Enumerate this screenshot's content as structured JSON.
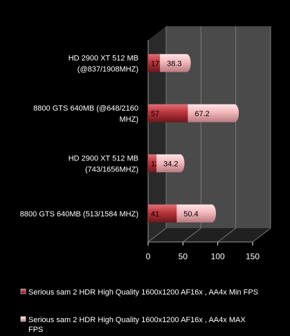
{
  "chart_data": {
    "type": "bar",
    "orientation": "horizontal",
    "three_d": true,
    "categories": [
      "HD 2900 XT 512 MB (@837/1908MHZ)",
      "8800 GTS 640MB (@648/2160 MHZ)",
      "HD 2900 XT 512 MB (743/1656MHZ)",
      "8800 GTS 640MB (513/1584 MHZ)"
    ],
    "category_label_lines": [
      [
        "HD 2900 XT 512 MB",
        "(@837/1908MHZ)"
      ],
      [
        "8800 GTS 640MB (@648/2160",
        "MHZ)"
      ],
      [
        "HD 2900 XT 512 MB",
        "(743/1656MHZ)"
      ],
      [
        "8800 GTS 640MB (513/1584 MHZ)"
      ]
    ],
    "stacked": true,
    "series": [
      {
        "name": "Serious sam 2 HDR High Quality 1600x1200 AF16x , AA4x Min FPS",
        "values": [
          17,
          57,
          12,
          41
        ],
        "color": "#b9353b"
      },
      {
        "name": "Serious sam 2 HDR High Quality 1600x1200 AF16x , AA4x MAX FPS",
        "values": [
          38.3,
          67.2,
          34.2,
          50.4
        ],
        "color": "#f2b8bc"
      }
    ],
    "data_labels": [
      [
        "17",
        "57",
        "12",
        "41"
      ],
      [
        "38.3",
        "67.2",
        "34.2",
        "50.4"
      ]
    ],
    "xlim": [
      0,
      150
    ],
    "xticks": [
      "0",
      "50",
      "100",
      "150"
    ],
    "title": "",
    "xlabel": "",
    "ylabel": "",
    "grid": true,
    "legend_position": "bottom",
    "colors": {
      "background": "#000000",
      "plot_wall": "#4a4a4a",
      "gridline": "#7a7a7a",
      "text": "#ffffff"
    }
  }
}
